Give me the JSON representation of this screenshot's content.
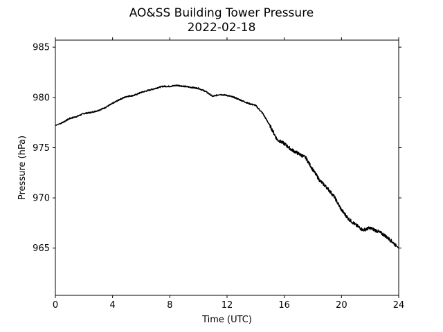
{
  "chart_data": {
    "type": "line",
    "title": "AO&SS Building Tower Pressure",
    "subtitle": "2022-02-18",
    "xlabel": "Time (UTC)",
    "ylabel": "Pressure (hPa)",
    "xlim": [
      0,
      24
    ],
    "ylim": [
      960.3,
      985.7
    ],
    "xticks": [
      0,
      4,
      8,
      12,
      16,
      20,
      24
    ],
    "yticks": [
      965,
      970,
      975,
      980,
      985
    ],
    "grid": false,
    "legend": "none",
    "line_color": "#000000",
    "series": [
      {
        "x": [
          0,
          0.5,
          1,
          1.5,
          2,
          2.5,
          3,
          3.5,
          4,
          4.5,
          5,
          5.5,
          6,
          6.5,
          7,
          7.5,
          8,
          8.5,
          9,
          9.5,
          10,
          10.5,
          11,
          11.5,
          12,
          12.5,
          13,
          13.5,
          14,
          14.5,
          15,
          15.5,
          16,
          16.5,
          17,
          17.5,
          18,
          18.5,
          19,
          19.5,
          20,
          20.5,
          21,
          21.5,
          22,
          22.5,
          23,
          23.5,
          24
        ],
        "y": [
          977.2,
          977.5,
          977.9,
          978.1,
          978.4,
          978.5,
          978.7,
          979.0,
          979.4,
          979.8,
          980.1,
          980.2,
          980.5,
          980.7,
          980.9,
          981.1,
          981.1,
          981.2,
          981.1,
          981.0,
          980.9,
          980.6,
          980.1,
          980.3,
          980.2,
          980.0,
          979.7,
          979.4,
          979.2,
          978.4,
          977.2,
          975.8,
          975.4,
          974.8,
          974.4,
          974.0,
          972.8,
          971.7,
          971.0,
          970.1,
          968.8,
          967.9,
          967.3,
          966.8,
          967.0,
          966.7,
          966.3,
          965.7,
          965.0
        ]
      }
    ]
  }
}
